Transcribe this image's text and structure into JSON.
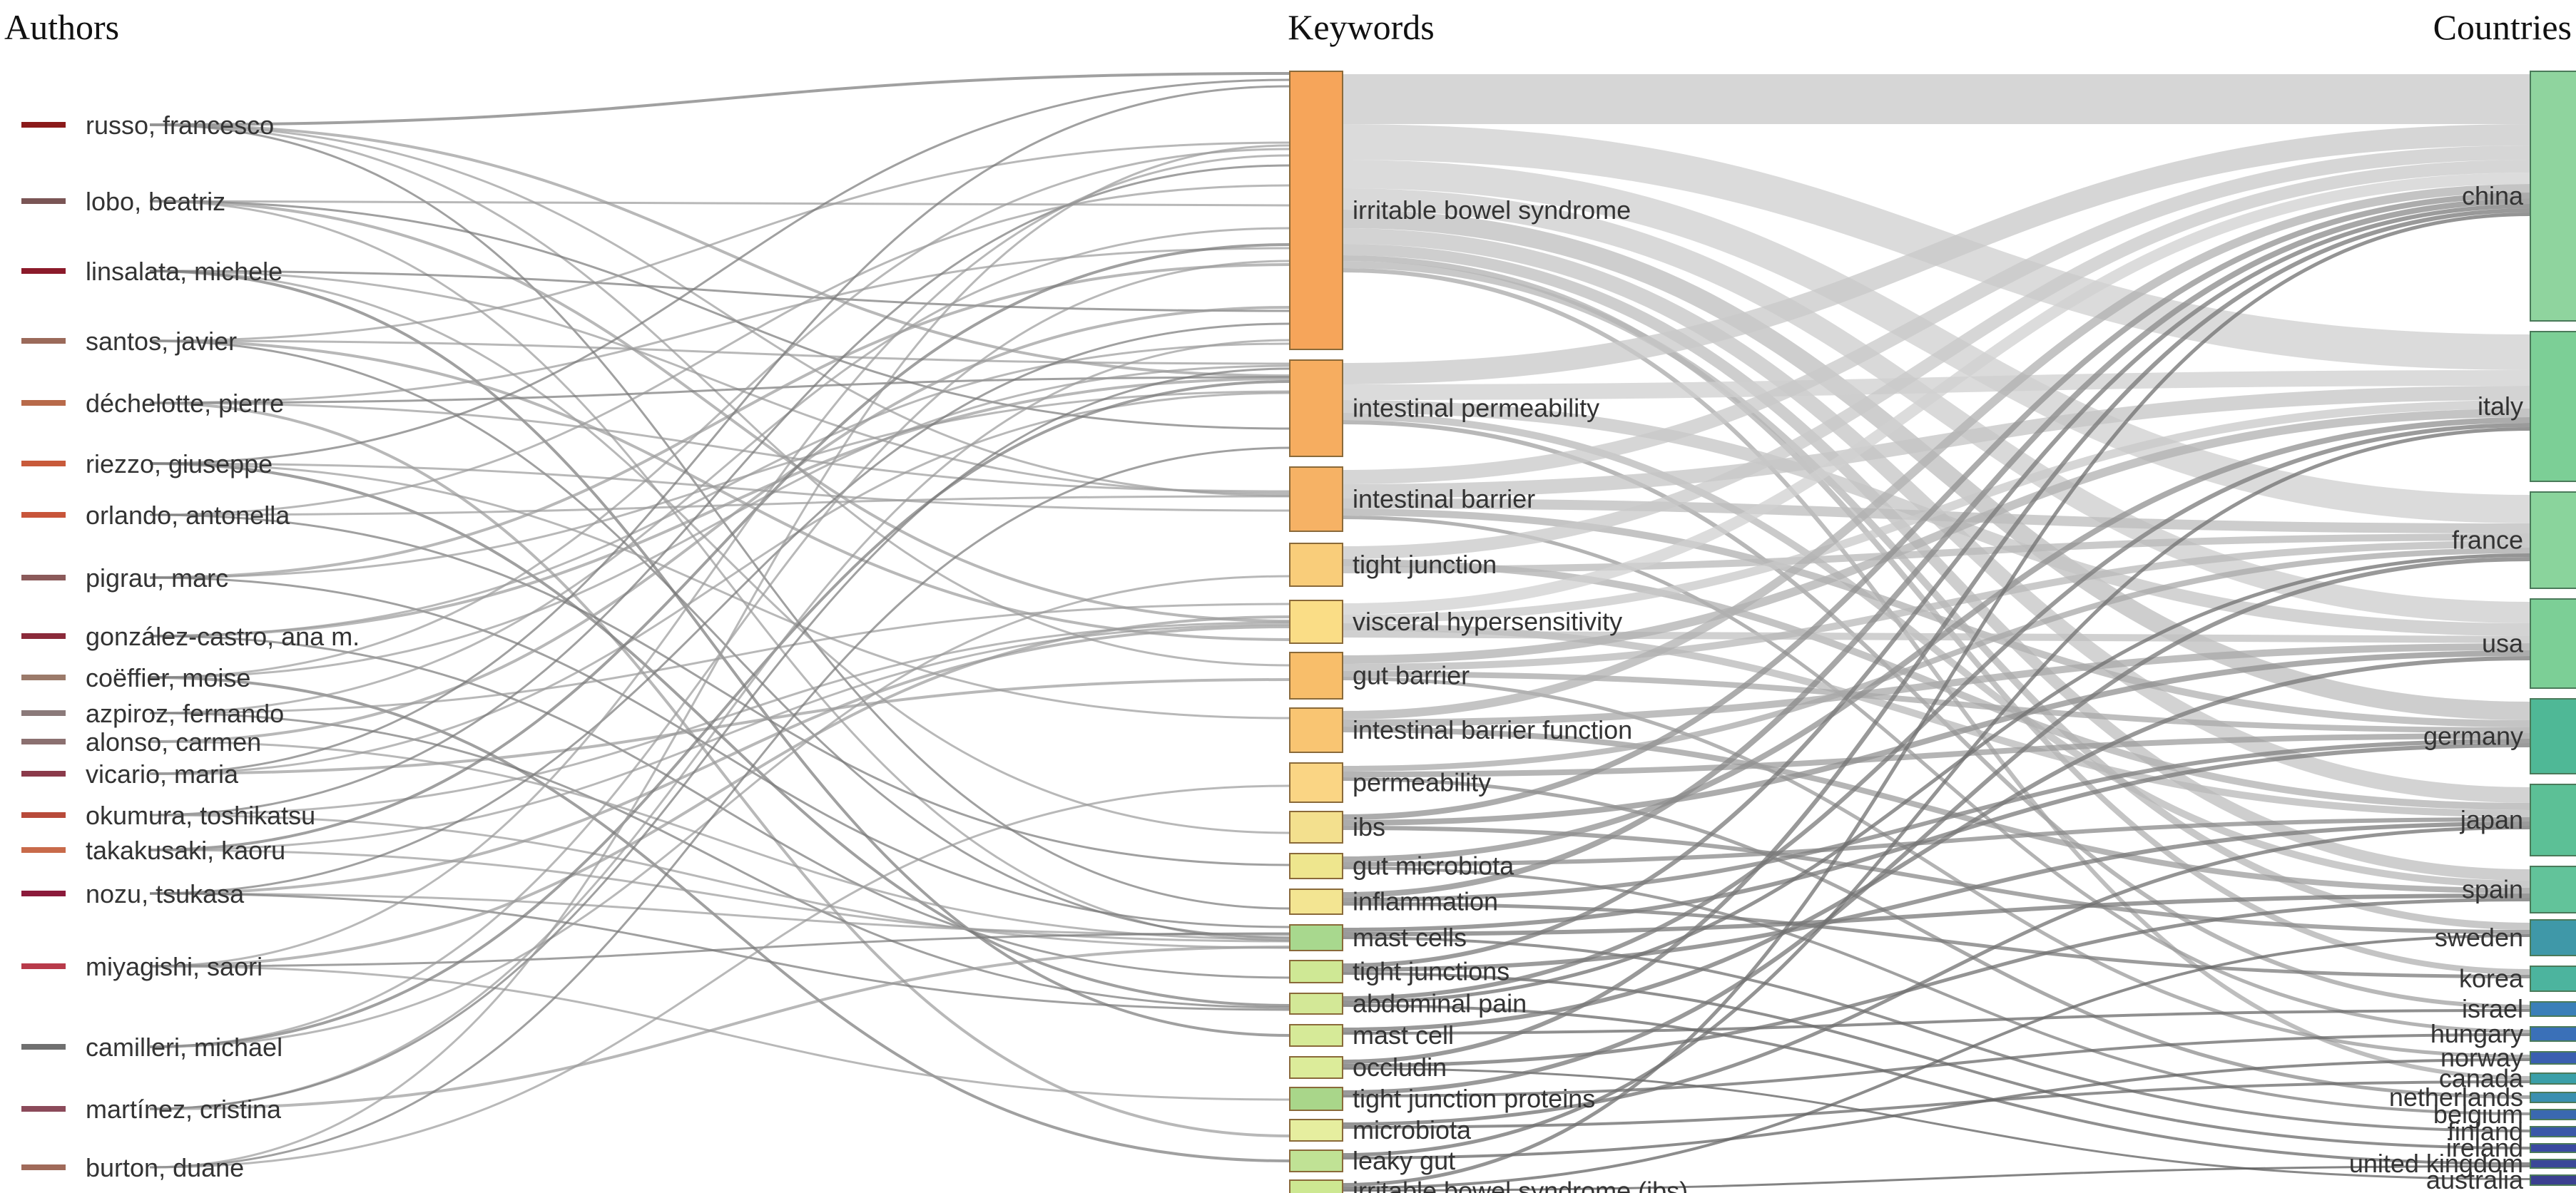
{
  "column_titles": {
    "authors": "Authors",
    "keywords": "Keywords",
    "countries": "Countries"
  },
  "authors": [
    {
      "name": "russo, francesco",
      "color": "#8b1a1a"
    },
    {
      "name": "lobo, beatriz",
      "color": "#7a5555"
    },
    {
      "name": "linsalata, michele",
      "color": "#8b1a2a"
    },
    {
      "name": "santos, javier",
      "color": "#9b6a5a"
    },
    {
      "name": "déchelotte, pierre",
      "color": "#b86a4a"
    },
    {
      "name": "riezzo, giuseppe",
      "color": "#c85a3a"
    },
    {
      "name": "orlando, antonella",
      "color": "#c8553a"
    },
    {
      "name": "pigrau, marc",
      "color": "#8b5a5a"
    },
    {
      "name": "gonzález-castro, ana m.",
      "color": "#8b2a3a"
    },
    {
      "name": "coëffier, moise",
      "color": "#9b7a6a"
    },
    {
      "name": "azpiroz, fernando",
      "color": "#8b7a7a"
    },
    {
      "name": "alonso, carmen",
      "color": "#8b7070"
    },
    {
      "name": "vicario, maria",
      "color": "#8b3a4a"
    },
    {
      "name": "okumura, toshikatsu",
      "color": "#b84a3a"
    },
    {
      "name": "takakusaki, kaoru",
      "color": "#c86a4a"
    },
    {
      "name": "nozu, tsukasa",
      "color": "#8b1a3a"
    },
    {
      "name": "miyagishi, saori",
      "color": "#b83a4a"
    },
    {
      "name": "camilleri, michael",
      "color": "#707070"
    },
    {
      "name": "martínez, cristina",
      "color": "#8b4a5a"
    },
    {
      "name": "burton, duane",
      "color": "#a06a5a"
    }
  ],
  "keywords": [
    {
      "name": "irritable bowel syndrome",
      "color": "#f6a55a"
    },
    {
      "name": "intestinal permeability",
      "color": "#f6ad60"
    },
    {
      "name": "intestinal barrier",
      "color": "#f6b265"
    },
    {
      "name": "tight junction",
      "color": "#f9cd7a"
    },
    {
      "name": "visceral hypersensitivity",
      "color": "#fadd86"
    },
    {
      "name": "gut barrier",
      "color": "#f8be6a"
    },
    {
      "name": "intestinal barrier function",
      "color": "#f9c572"
    },
    {
      "name": "permeability",
      "color": "#fad584"
    },
    {
      "name": "ibs",
      "color": "#f3e08e"
    },
    {
      "name": "gut microbiota",
      "color": "#eee68e"
    },
    {
      "name": "inflammation",
      "color": "#f3e592"
    },
    {
      "name": "mast cells",
      "color": "#a8d88e"
    },
    {
      "name": "tight junctions",
      "color": "#cfe895"
    },
    {
      "name": "abdominal pain",
      "color": "#d3e897"
    },
    {
      "name": "mast cell",
      "color": "#d6ea98"
    },
    {
      "name": "occludin",
      "color": "#dcec9a"
    },
    {
      "name": "tight junction proteins",
      "color": "#a9d68a"
    },
    {
      "name": "microbiota",
      "color": "#e6ee9f"
    },
    {
      "name": "leaky gut",
      "color": "#c0e295"
    },
    {
      "name": "irritable bowel syndrome (ibs)",
      "color": "#cde892"
    }
  ],
  "countries": [
    {
      "name": "china",
      "color": "#8fd49e"
    },
    {
      "name": "italy",
      "color": "#7ccf96"
    },
    {
      "name": "france",
      "color": "#8ad49c"
    },
    {
      "name": "usa",
      "color": "#7ccf96"
    },
    {
      "name": "germany",
      "color": "#4fb896"
    },
    {
      "name": "japan",
      "color": "#5cc096"
    },
    {
      "name": "spain",
      "color": "#62c39a"
    },
    {
      "name": "sweden",
      "color": "#3f98a8"
    },
    {
      "name": "korea",
      "color": "#4cb49e"
    },
    {
      "name": "israel",
      "color": "#3a7fb8"
    },
    {
      "name": "hungary",
      "color": "#3a70b8"
    },
    {
      "name": "norway",
      "color": "#3a5fb0"
    },
    {
      "name": "canada",
      "color": "#3a9fa8"
    },
    {
      "name": "netherlands",
      "color": "#3a8fb0"
    },
    {
      "name": "belgium",
      "color": "#3a68b0"
    },
    {
      "name": "finland",
      "color": "#3a58a8"
    },
    {
      "name": "ireland",
      "color": "#3a4aa0"
    },
    {
      "name": "united kingdom",
      "color": "#3a4898"
    },
    {
      "name": "australia",
      "color": "#3a4090"
    }
  ]
}
